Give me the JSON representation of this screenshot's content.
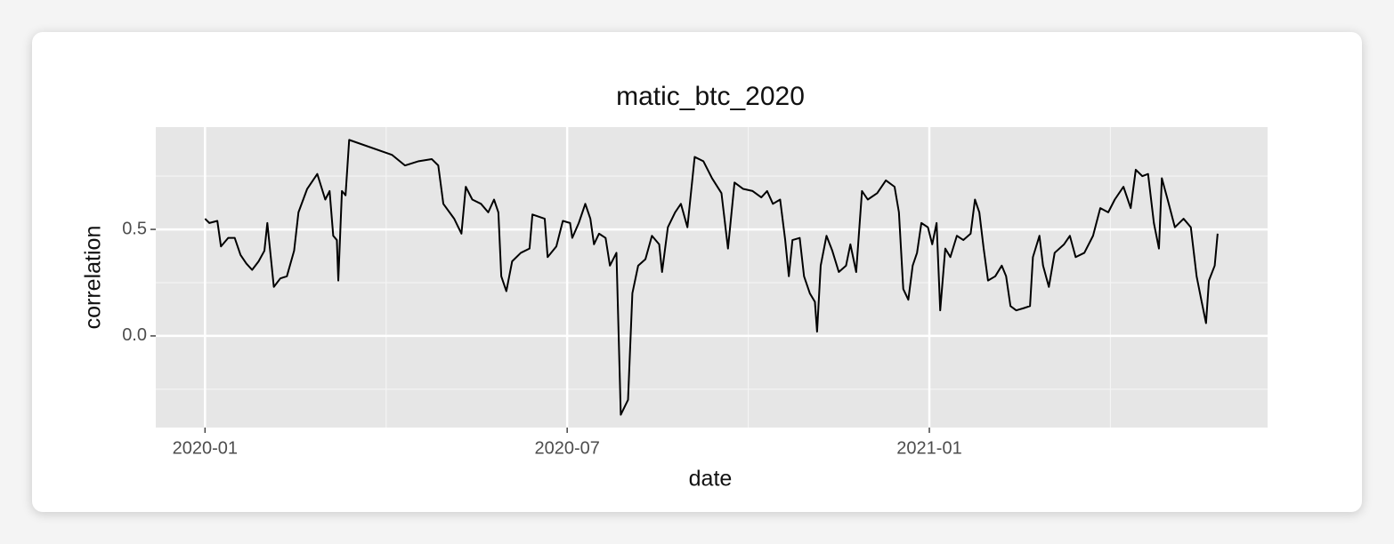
{
  "chart_data": {
    "type": "line",
    "title": "matic_btc_2020",
    "xlabel": "date",
    "ylabel": "correlation",
    "xlim": [
      2019.932,
      2021.467
    ],
    "ylim": [
      -0.43,
      0.98
    ],
    "xticks": [
      {
        "value": 2020.0,
        "label": "2020-01"
      },
      {
        "value": 2020.5,
        "label": "2020-07"
      },
      {
        "value": 2021.0,
        "label": "2021-01"
      }
    ],
    "yticks": [
      {
        "value": 0,
        "label": "0.0"
      },
      0.5
    ],
    "xminor": [
      2020.25,
      2020.75,
      2021.25
    ],
    "yminor": [
      -0.25,
      0.25,
      0.75
    ],
    "grid": true,
    "series": [
      {
        "color": "#000000",
        "x": [
          2020.0,
          2020.006,
          2020.017,
          2020.022,
          2020.032,
          2020.041,
          2020.049,
          2020.057,
          2020.065,
          2020.074,
          2020.082,
          2020.086,
          2020.095,
          2020.104,
          2020.113,
          2020.123,
          2020.129,
          2020.141,
          2020.155,
          2020.166,
          2020.172,
          2020.177,
          2020.182,
          2020.184,
          2020.189,
          2020.194,
          2020.199,
          2020.258,
          2020.276,
          2020.295,
          2020.313,
          2020.322,
          2020.329,
          2020.344,
          2020.354,
          2020.36,
          2020.369,
          2020.381,
          2020.391,
          2020.399,
          2020.405,
          2020.409,
          2020.416,
          2020.424,
          2020.436,
          2020.448,
          2020.452,
          2020.469,
          2020.473,
          2020.485,
          2020.494,
          2020.504,
          2020.507,
          2020.516,
          2020.525,
          2020.532,
          2020.537,
          2020.544,
          2020.553,
          2020.559,
          2020.568,
          2020.574,
          2020.584,
          2020.59,
          2020.598,
          2020.608,
          2020.617,
          2020.627,
          2020.631,
          2020.639,
          2020.649,
          2020.657,
          2020.666,
          2020.676,
          2020.688,
          2020.7,
          2020.713,
          2020.722,
          2020.731,
          2020.743,
          2020.756,
          2020.768,
          2020.776,
          2020.784,
          2020.794,
          2020.801,
          2020.806,
          2020.811,
          2020.821,
          2020.827,
          2020.835,
          2020.842,
          2020.845,
          2020.85,
          2020.858,
          2020.866,
          2020.875,
          2020.885,
          2020.891,
          2020.899,
          2020.907,
          2020.915,
          2020.928,
          2020.94,
          2020.952,
          2020.958,
          2020.964,
          2020.971,
          2020.977,
          2020.983,
          2020.989,
          2020.998,
          2021.004,
          2021.01,
          2021.015,
          2021.022,
          2021.029,
          2021.038,
          2021.047,
          2021.057,
          2021.063,
          2021.069,
          2021.075,
          2021.081,
          2021.091,
          2021.1,
          2021.106,
          2021.112,
          2021.12,
          2021.13,
          2021.139,
          2021.143,
          2021.152,
          2021.157,
          2021.165,
          2021.173,
          2021.186,
          2021.194,
          2021.202,
          2021.214,
          2021.226,
          2021.236,
          2021.247,
          2021.256,
          2021.268,
          2021.278,
          2021.285,
          2021.294,
          2021.302,
          2021.31,
          2021.317,
          2021.321,
          2021.329,
          2021.339,
          2021.351,
          2021.361,
          2021.369,
          2021.376,
          2021.382,
          2021.386,
          2021.394,
          2021.398
        ],
        "values": [
          0.55,
          0.53,
          0.54,
          0.42,
          0.46,
          0.46,
          0.38,
          0.34,
          0.31,
          0.35,
          0.4,
          0.53,
          0.23,
          0.27,
          0.28,
          0.4,
          0.58,
          0.69,
          0.76,
          0.64,
          0.68,
          0.47,
          0.45,
          0.26,
          0.68,
          0.66,
          0.92,
          0.85,
          0.8,
          0.82,
          0.83,
          0.8,
          0.62,
          0.55,
          0.48,
          0.7,
          0.64,
          0.62,
          0.58,
          0.64,
          0.58,
          0.28,
          0.21,
          0.35,
          0.39,
          0.41,
          0.57,
          0.55,
          0.37,
          0.42,
          0.54,
          0.53,
          0.46,
          0.53,
          0.62,
          0.55,
          0.43,
          0.48,
          0.46,
          0.33,
          0.39,
          -0.37,
          -0.3,
          0.2,
          0.33,
          0.36,
          0.47,
          0.43,
          0.3,
          0.51,
          0.58,
          0.62,
          0.51,
          0.84,
          0.82,
          0.74,
          0.67,
          0.41,
          0.72,
          0.69,
          0.68,
          0.65,
          0.68,
          0.62,
          0.64,
          0.45,
          0.28,
          0.45,
          0.46,
          0.28,
          0.2,
          0.16,
          0.02,
          0.33,
          0.47,
          0.4,
          0.3,
          0.33,
          0.43,
          0.3,
          0.68,
          0.64,
          0.67,
          0.73,
          0.7,
          0.58,
          0.22,
          0.17,
          0.33,
          0.39,
          0.53,
          0.51,
          0.43,
          0.53,
          0.12,
          0.41,
          0.37,
          0.47,
          0.45,
          0.48,
          0.64,
          0.58,
          0.41,
          0.26,
          0.28,
          0.33,
          0.28,
          0.14,
          0.12,
          0.13,
          0.14,
          0.37,
          0.47,
          0.33,
          0.23,
          0.39,
          0.43,
          0.47,
          0.37,
          0.39,
          0.47,
          0.6,
          0.58,
          0.64,
          0.7,
          0.6,
          0.78,
          0.75,
          0.76,
          0.53,
          0.41,
          0.74,
          0.64,
          0.51,
          0.55,
          0.51,
          0.28,
          0.16,
          0.06,
          0.26,
          0.33,
          0.48
        ]
      }
    ]
  }
}
